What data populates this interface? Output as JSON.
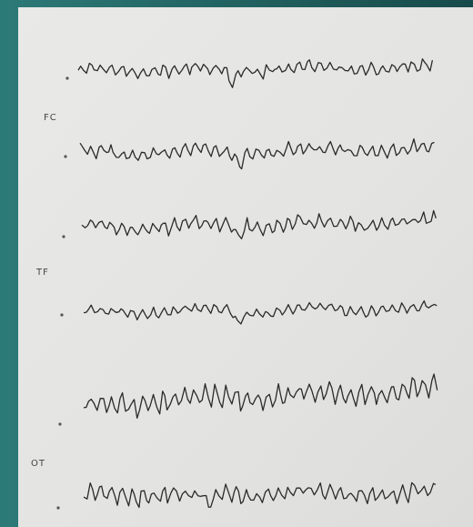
{
  "channel_labels": [
    "FC",
    "TF",
    "OT"
  ]
}
